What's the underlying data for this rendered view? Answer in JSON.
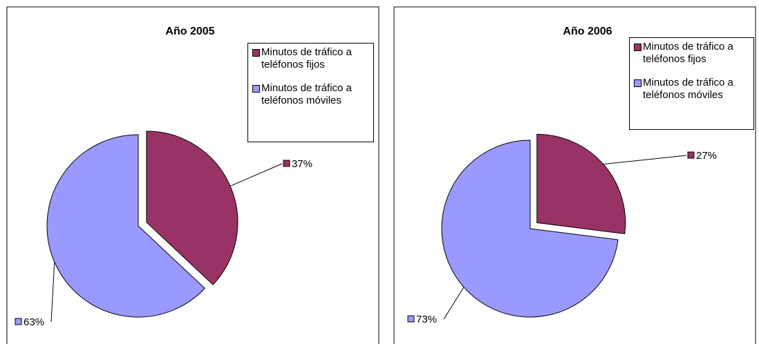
{
  "chart_data": [
    {
      "type": "pie",
      "title": "Año 2005",
      "categories": [
        "Minutos de tráfico a teléfonos fijos",
        "Minutos de tráfico a teléfonos móviles"
      ],
      "values": [
        37,
        63
      ],
      "value_labels": [
        "37%",
        "63%"
      ],
      "colors": [
        "#993366",
        "#9999ff"
      ],
      "legend": "top-right"
    },
    {
      "type": "pie",
      "title": "Año 2006",
      "categories": [
        "Minutos de tráfico a teléfonos fijos",
        "Minutos de tráfico a teléfonos móviles"
      ],
      "values": [
        27,
        73
      ],
      "value_labels": [
        "27%",
        "73%"
      ],
      "colors": [
        "#993366",
        "#9999ff"
      ],
      "legend": "top-right"
    }
  ]
}
